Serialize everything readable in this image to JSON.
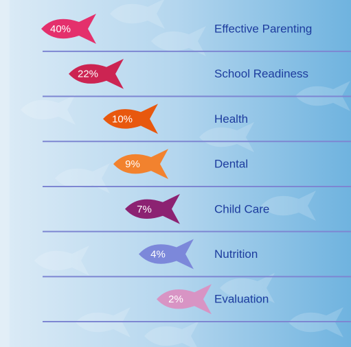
{
  "chart_data": {
    "type": "pictogram",
    "categories": [
      "Effective Parenting",
      "School Readiness",
      "Health",
      "Dental",
      "Child Care",
      "Nutrition",
      "Evaluation"
    ],
    "values": [
      40,
      22,
      10,
      9,
      7,
      4,
      2
    ],
    "value_labels": [
      "40%",
      "22%",
      "10%",
      "9%",
      "7%",
      "4%",
      "2%"
    ],
    "colors": [
      "#e4306c",
      "#cc2452",
      "#e8580e",
      "#f2822e",
      "#8c2272",
      "#7c88da",
      "#d894c4"
    ]
  }
}
